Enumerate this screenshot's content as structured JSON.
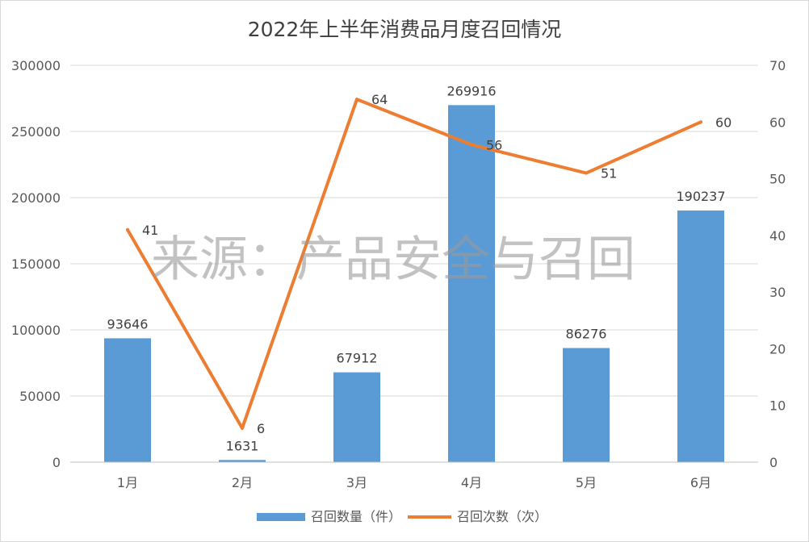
{
  "chart_data": {
    "type": "bar+line",
    "title": "2022年上半年消费品月度召回情况",
    "watermark": "来源：产品安全与召回",
    "categories": [
      "1月",
      "2月",
      "3月",
      "4月",
      "5月",
      "6月"
    ],
    "series": [
      {
        "name": "召回数量（件）",
        "type": "bar",
        "axis": "left",
        "color": "#5b9bd5",
        "values": [
          93646,
          1631,
          67912,
          269916,
          86276,
          190237
        ]
      },
      {
        "name": "召回次数（次）",
        "type": "line",
        "axis": "right",
        "color": "#ed7d31",
        "values": [
          41,
          6,
          64,
          56,
          51,
          60
        ]
      }
    ],
    "y_left": {
      "min": 0,
      "max": 300000,
      "step": 50000
    },
    "y_right": {
      "min": 0,
      "max": 70,
      "step": 10
    },
    "grid": true,
    "legend_position": "bottom"
  }
}
